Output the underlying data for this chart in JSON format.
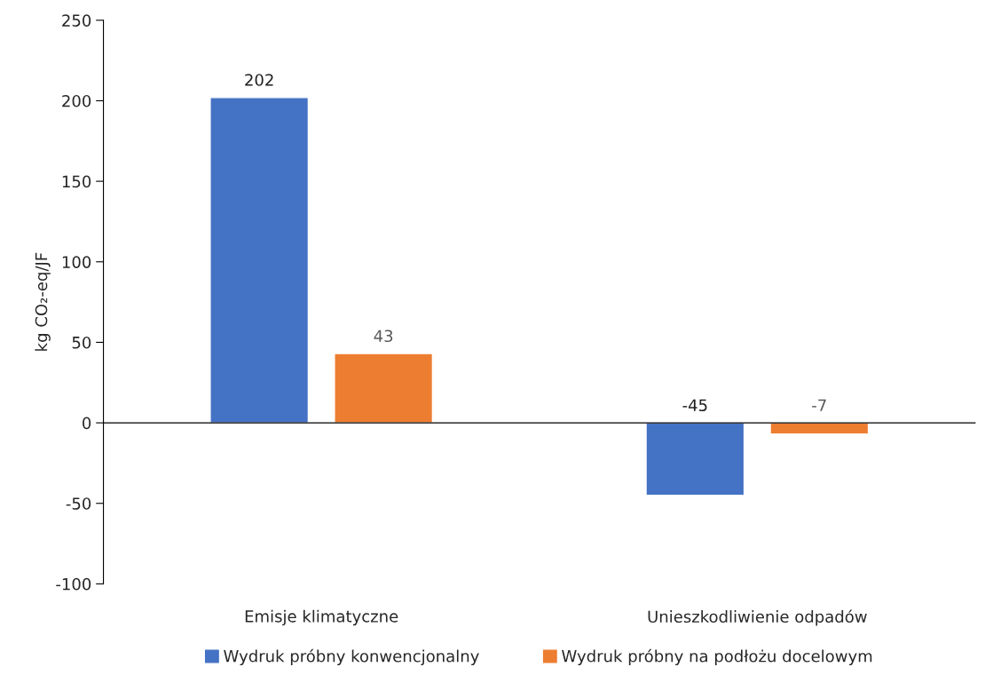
{
  "chart_data": {
    "type": "bar",
    "ylabel": "kg CO₂-eq/JF",
    "categories": [
      "Emisje klimatyczne",
      "Unieszkodliwienie odpadów"
    ],
    "series": [
      {
        "name": "Wydruk próbny konwencjonalny",
        "color": "#4472c4",
        "values": [
          202,
          -45
        ]
      },
      {
        "name": "Wydruk próbny na podłożu docelowym",
        "color": "#ed7d31",
        "values": [
          43,
          -7
        ]
      }
    ],
    "ylim": [
      -100,
      250
    ],
    "yticks": [
      -100,
      -50,
      0,
      50,
      100,
      150,
      200,
      250
    ],
    "legend": "bottom",
    "data_labels": true
  }
}
